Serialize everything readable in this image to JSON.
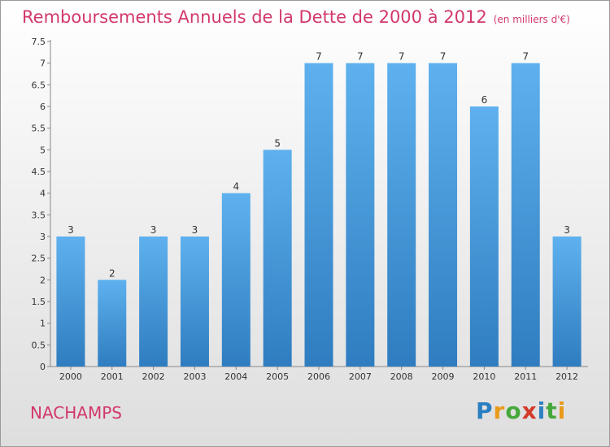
{
  "header": {
    "title": "Remboursements Annuels de la Dette de 2000 à 2012",
    "unit": "(en milliers d'€)"
  },
  "commune": "NACHAMPS",
  "logo": {
    "letters": [
      "P",
      "r",
      "o",
      "x",
      "i",
      "t",
      "i"
    ],
    "colors": [
      "#2a7fc0",
      "#e89a1a",
      "#45a83b",
      "#d43a2a",
      "#2a7fc0",
      "#45a83b",
      "#e89a1a"
    ]
  },
  "chart_data": {
    "type": "bar",
    "categories": [
      "2000",
      "2001",
      "2002",
      "2003",
      "2004",
      "2005",
      "2006",
      "2007",
      "2008",
      "2009",
      "2010",
      "2011",
      "2012"
    ],
    "values": [
      3,
      2,
      3,
      3,
      4,
      5,
      7,
      7,
      7,
      7,
      6,
      7,
      3
    ],
    "y_ticks": [
      "0",
      "0.5",
      "1",
      "1.5",
      "2",
      "2.5",
      "3",
      "3.5",
      "4",
      "4.5",
      "5",
      "5.5",
      "6",
      "6.5",
      "7",
      "7.5"
    ],
    "ylim": [
      0,
      7.5
    ],
    "grid": false,
    "bar_color": "#4f9fdf"
  }
}
